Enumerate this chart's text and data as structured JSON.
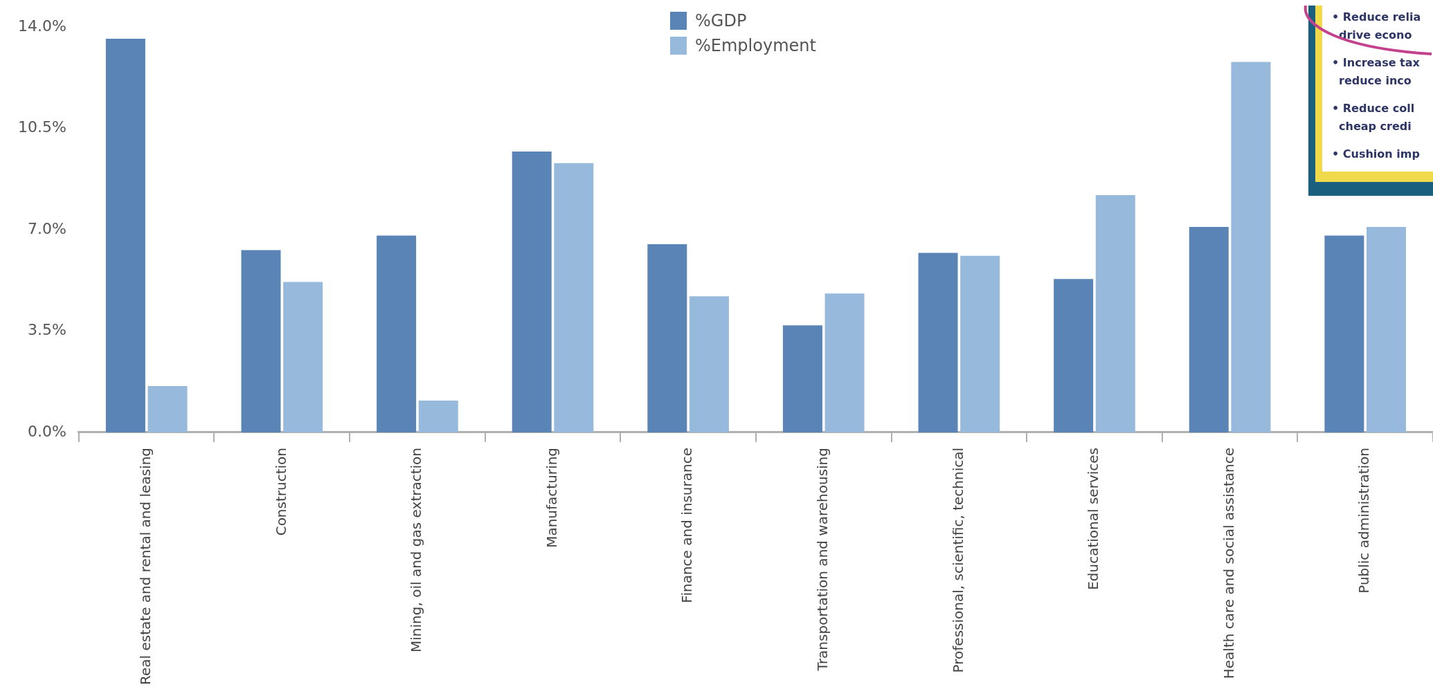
{
  "chart_data": {
    "type": "bar",
    "categories": [
      "Real estate and rental and leasing",
      "Construction",
      "Mining, oil and gas extraction",
      "Manufacturing",
      "Finance and insurance",
      "Transportation and warehousing",
      "Professional, scientific, technical",
      "Educational services",
      "Health care and social assistance",
      "Public administration"
    ],
    "series": [
      {
        "name": "%GDP",
        "color": "#5b84b6",
        "values": [
          13.6,
          6.3,
          6.8,
          9.7,
          6.5,
          3.7,
          6.2,
          5.3,
          7.1,
          6.8
        ]
      },
      {
        "name": "%Employment",
        "color": "#97b9dc",
        "values": [
          1.6,
          5.2,
          1.1,
          9.3,
          4.7,
          4.8,
          6.1,
          8.2,
          12.8,
          7.1
        ]
      }
    ],
    "ylim": [
      0,
      14
    ],
    "yticks": [
      {
        "value": 0,
        "label": "0.0%"
      },
      {
        "value": 3.5,
        "label": "3.5%"
      },
      {
        "value": 7,
        "label": "7.0%"
      },
      {
        "value": 10.5,
        "label": "10.5%"
      },
      {
        "value": 14,
        "label": "14.0%"
      }
    ],
    "grid": false,
    "legend": "top",
    "annotations": [
      "• Reduce relia",
      "drive econo",
      "• Increase tax",
      "reduce inco",
      "• Reduce coll",
      "cheap credi",
      "• Cushion imp"
    ]
  }
}
